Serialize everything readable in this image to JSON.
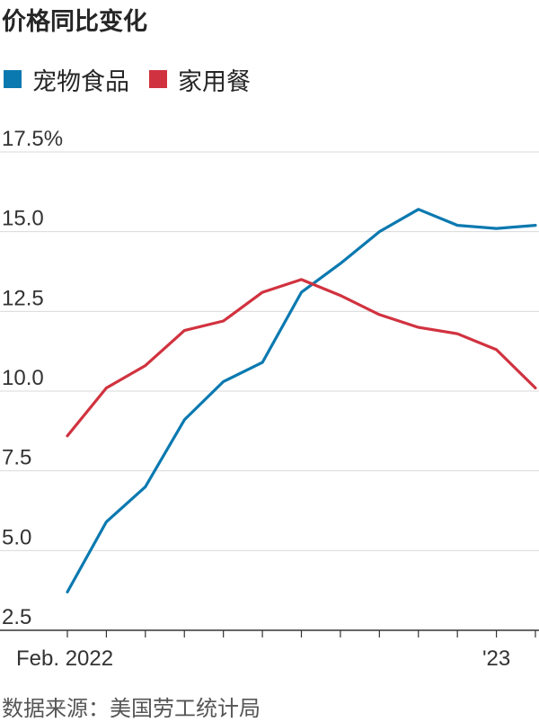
{
  "source": "数据来源：美国劳工统计局",
  "colors": {
    "pet_food": "#0a79b0",
    "home_meal": "#d1323f",
    "grid": "#d9d9d9",
    "axis": "#333333"
  },
  "chart_data": {
    "type": "line",
    "title": "价格同比变化",
    "ylabel": "",
    "xlabel": "",
    "ylim": [
      2.5,
      17.5
    ],
    "y_ticks": [
      2.5,
      5.0,
      7.5,
      10.0,
      12.5,
      15.0,
      17.5
    ],
    "y_tick_labels": [
      "2.5",
      "5.0",
      "7.5",
      "10.0",
      "12.5",
      "15.0",
      "17.5%"
    ],
    "x": [
      "2022-02",
      "2022-03",
      "2022-04",
      "2022-05",
      "2022-06",
      "2022-07",
      "2022-08",
      "2022-09",
      "2022-10",
      "2022-11",
      "2022-12",
      "2023-01",
      "2023-02"
    ],
    "x_tick_labels": [
      {
        "index": 0,
        "label": "Feb. 2022"
      },
      {
        "index": 11,
        "label": "'23"
      }
    ],
    "series": [
      {
        "name": "宠物食品",
        "color_key": "pet_food",
        "values": [
          3.7,
          5.9,
          7.0,
          9.1,
          10.3,
          10.9,
          13.1,
          14.0,
          15.0,
          15.7,
          15.2,
          15.1,
          15.2
        ]
      },
      {
        "name": "家用餐",
        "color_key": "home_meal",
        "values": [
          8.6,
          10.1,
          10.8,
          11.9,
          12.2,
          13.1,
          13.5,
          13.0,
          12.4,
          12.0,
          11.8,
          11.3,
          10.1
        ]
      }
    ],
    "grid": true,
    "legend": "top-left"
  }
}
